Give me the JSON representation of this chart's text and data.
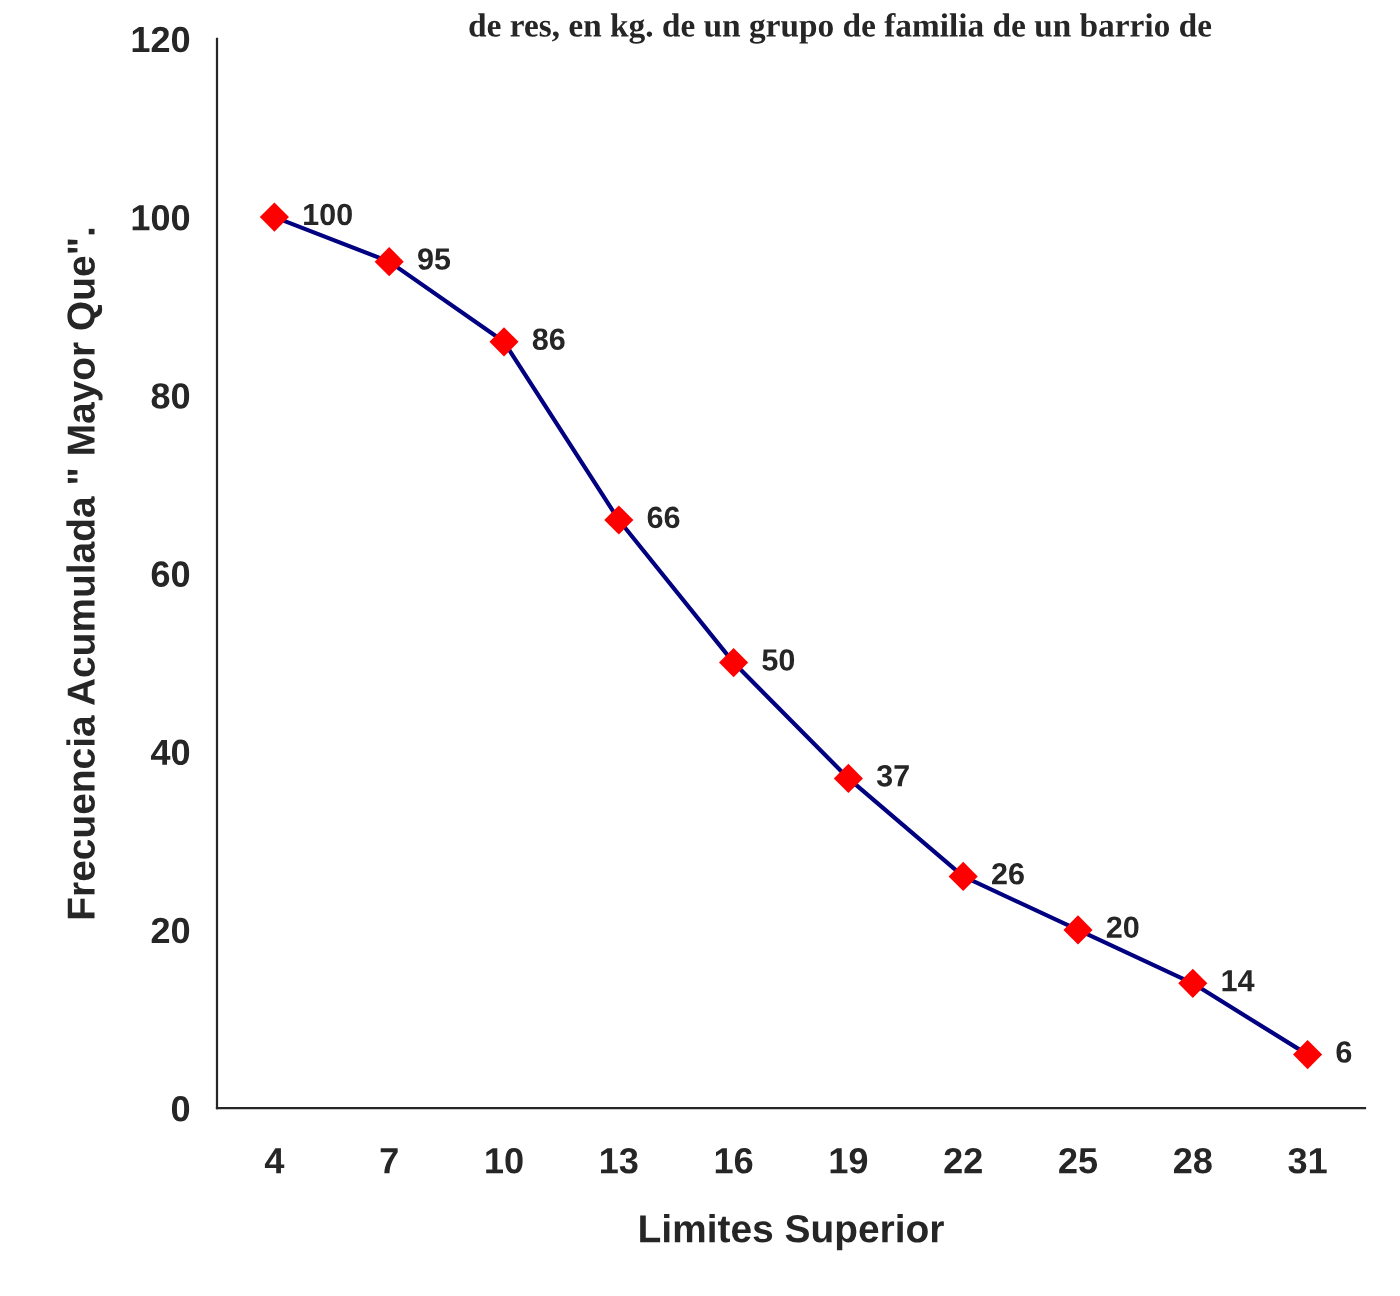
{
  "chart_data": {
    "type": "line",
    "title": "de res, en kg. de un grupo de familia de un barrio de",
    "xlabel": "Limites Superior",
    "ylabel": "Frecuencia Acumulada \" Mayor Que\".",
    "categories": [
      "4",
      "7",
      "10",
      "13",
      "16",
      "19",
      "22",
      "25",
      "28",
      "31"
    ],
    "series": [
      {
        "color": "#000080",
        "colors": [
          "#ff0000",
          "#ff0000",
          "#ff0000",
          "#ff0000",
          "#ff0000",
          "#ff0000",
          "#ff0000",
          "#ff0000",
          "#ff0000",
          "#ff0000"
        ],
        "values": [
          100,
          95,
          86,
          66,
          50,
          37,
          26,
          20,
          14,
          6
        ]
      }
    ],
    "ylim": [
      0,
      120
    ],
    "yticks": [
      0,
      20,
      40,
      60,
      80,
      100,
      120
    ],
    "data_labels": true,
    "marker": "diamond",
    "line_style": "solid",
    "grid": false,
    "legend": false
  }
}
